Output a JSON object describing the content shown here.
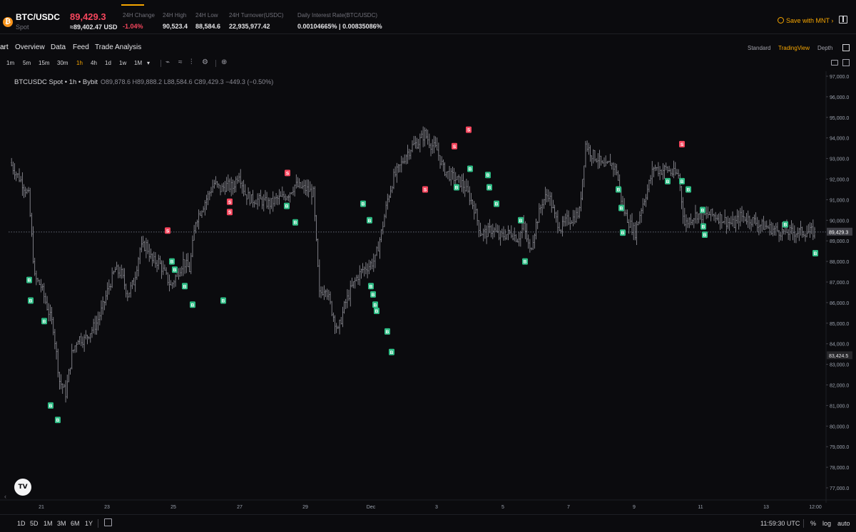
{
  "ticker": {
    "pair": "BTC/USDC",
    "type": "Spot",
    "coin_glyph": "₿",
    "last_price": "89,429.3",
    "fiat_price": "≈89,402.47 USD",
    "stats": [
      {
        "label": "24H Change",
        "value": "-1.04%",
        "negative": true
      },
      {
        "label": "24H High",
        "value": "90,523.4",
        "negative": false
      },
      {
        "label": "24H Low",
        "value": "88,584.6",
        "negative": false
      },
      {
        "label": "24H Turnover(USDC)",
        "value": "22,935,977.42",
        "negative": false
      },
      {
        "label": "Daily Interest Rate(BTC/USDC)",
        "value": "0.00104665% | 0.00835086%",
        "negative": false
      }
    ],
    "save_label": "Save with MNT ›"
  },
  "tabs": [
    "art",
    "Overview",
    "Data",
    "Feed",
    "Trade Analysis"
  ],
  "views": [
    "Standard",
    "TradingView",
    "Depth"
  ],
  "active_view": "TradingView",
  "intervals": [
    "1m",
    "5m",
    "15m",
    "30m",
    "1h",
    "4h",
    "1d",
    "1w",
    "1M",
    "▾"
  ],
  "active_interval": "1h",
  "tools": [
    "⌁",
    "≈",
    "⫶",
    "⚙",
    "⊕"
  ],
  "legend": {
    "symbol": "BTCUSDC Spot • 1h • Bybit",
    "ohlc": "O89,878.6 H89,888.2 L88,584.6 C89,429.3 −449.3 (−0.50%)"
  },
  "ranges": [
    "1D",
    "5D",
    "1M",
    "3M",
    "6M",
    "1Y"
  ],
  "clock": "11:59:30 UTC",
  "scale_options": [
    "%",
    "log",
    "auto"
  ],
  "tv_logo": "TV",
  "scroll_glyph": "‹",
  "colors": {
    "buy": "#2ebd85",
    "sell": "#f6465d",
    "accent": "#f7a600",
    "bar": "#9a9aa2"
  },
  "chart_data": {
    "type": "line",
    "style": "ohlc-bars",
    "symbol": "BTCUSDC",
    "interval": "1h",
    "ylim": [
      76500,
      97200
    ],
    "y_ticks": [
      97000,
      96000,
      95000,
      94000,
      93000,
      92000,
      91000,
      90000,
      89000,
      88000,
      87000,
      86000,
      85000,
      84000,
      83000,
      82000,
      81000,
      80000,
      79000,
      78000,
      77000
    ],
    "y_tick_labels": [
      "97,000.0",
      "96,000.0",
      "95,000.0",
      "94,000.0",
      "93,000.0",
      "92,000.0",
      "91,000.0",
      "90,000.0",
      "89,000.0",
      "88,000.0",
      "87,000.0",
      "86,000.0",
      "85,000.0",
      "84,000.0",
      "83,000.0",
      "82,000.0",
      "81,000.0",
      "80,000.0",
      "79,000.0",
      "78,000.0",
      "77,000.0"
    ],
    "x_ticks": [
      "21",
      "23",
      "25",
      "27",
      "29",
      "Dec",
      "3",
      "5",
      "7",
      "9",
      "11",
      "13",
      "12:00"
    ],
    "current_price": 89429.3,
    "current_price_label": "89,429.3",
    "low_marker": 83424.5,
    "low_marker_label": "83,424.5",
    "series": [
      {
        "values_x": [
          0,
          3,
          6,
          9,
          12,
          15,
          18,
          21,
          24,
          27,
          30,
          33,
          36,
          39,
          42,
          45,
          48,
          51,
          54,
          57,
          60,
          63,
          66,
          69,
          72,
          75,
          78,
          81,
          84,
          87,
          90,
          93,
          96,
          99,
          102,
          105,
          108,
          111,
          114,
          117,
          120,
          123,
          126,
          129,
          132,
          135,
          138,
          141,
          144,
          147,
          150,
          153,
          156,
          159,
          162,
          165,
          168,
          171,
          174,
          177,
          180,
          183,
          186,
          189,
          192,
          195,
          198,
          201,
          204,
          207,
          210,
          213,
          216,
          219,
          222,
          225,
          228,
          231,
          234,
          237,
          240,
          243,
          246,
          249,
          252,
          255,
          258,
          261,
          264,
          267,
          270,
          273,
          276,
          279,
          282,
          285,
          288,
          291,
          294,
          297,
          300,
          303,
          306,
          309,
          312,
          315,
          318,
          321,
          324,
          327,
          330,
          333,
          336,
          339,
          342,
          345,
          348,
          351,
          354,
          357,
          360,
          363,
          366,
          369,
          372,
          375,
          378,
          381,
          384,
          387,
          390
        ],
        "values": [
          92800,
          92300,
          91800,
          91200,
          87200,
          86800,
          85800,
          84800,
          82200,
          81600,
          83500,
          84300,
          84200,
          84600,
          85000,
          85800,
          86800,
          87600,
          87400,
          86400,
          87000,
          88600,
          88800,
          88000,
          88000,
          87400,
          86800,
          87400,
          88000,
          87600,
          90000,
          90600,
          91200,
          91800,
          91500,
          91700,
          91600,
          92300,
          91300,
          91000,
          91000,
          90900,
          90800,
          91000,
          91100,
          91300,
          91700,
          91600,
          91500,
          91300,
          86400,
          86800,
          85600,
          84600,
          85800,
          86600,
          87200,
          87600,
          87800,
          88100,
          89400,
          91000,
          92100,
          92600,
          93200,
          93600,
          93800,
          94200,
          93700,
          93400,
          92500,
          92200,
          92000,
          91800,
          91300,
          90600,
          89400,
          89400,
          89600,
          89200,
          89300,
          89400,
          89100,
          89700,
          88500,
          89800,
          90900,
          91300,
          90200,
          89600,
          90000,
          90100,
          90400,
          93700,
          93200,
          93000,
          92500,
          92800,
          92400,
          90600,
          89900,
          89400,
          90600,
          91500,
          92600,
          92400,
          92500,
          92300,
          92200,
          89800,
          90100,
          90300,
          90200,
          90300,
          90200,
          90100,
          89900,
          89800,
          90200,
          90100,
          90000,
          89800,
          89700,
          89600,
          89500,
          89430,
          89430,
          89430,
          89430,
          89430,
          89430
        ]
      }
    ],
    "signals": [
      {
        "label": "B",
        "kind": "buy",
        "x": 41,
        "y": 87100
      },
      {
        "label": "B",
        "kind": "buy",
        "x": 43,
        "y": 86100
      },
      {
        "label": "B",
        "kind": "buy",
        "x": 62,
        "y": 85100
      },
      {
        "label": "B",
        "kind": "buy",
        "x": 71,
        "y": 81000
      },
      {
        "label": "B",
        "kind": "buy",
        "x": 81,
        "y": 80300
      },
      {
        "label": "S",
        "kind": "sell",
        "x": 235,
        "y": 89500
      },
      {
        "label": "B",
        "kind": "buy",
        "x": 241,
        "y": 88000
      },
      {
        "label": "B",
        "kind": "buy",
        "x": 245,
        "y": 87600
      },
      {
        "label": "B",
        "kind": "buy",
        "x": 259,
        "y": 86800
      },
      {
        "label": "B",
        "kind": "buy",
        "x": 270,
        "y": 85900
      },
      {
        "label": "B",
        "kind": "buy",
        "x": 313,
        "y": 86100
      },
      {
        "label": "S",
        "kind": "sell",
        "x": 322,
        "y": 90900
      },
      {
        "label": "S",
        "kind": "sell",
        "x": 322,
        "y": 90400
      },
      {
        "label": "S",
        "kind": "sell",
        "x": 403,
        "y": 92300
      },
      {
        "label": "B",
        "kind": "buy",
        "x": 402,
        "y": 90700
      },
      {
        "label": "B",
        "kind": "buy",
        "x": 414,
        "y": 89900
      },
      {
        "label": "B",
        "kind": "buy",
        "x": 509,
        "y": 90800
      },
      {
        "label": "B",
        "kind": "buy",
        "x": 518,
        "y": 90000
      },
      {
        "label": "B",
        "kind": "buy",
        "x": 520,
        "y": 86800
      },
      {
        "label": "B",
        "kind": "buy",
        "x": 523,
        "y": 86400
      },
      {
        "label": "B",
        "kind": "buy",
        "x": 526,
        "y": 85900
      },
      {
        "label": "B",
        "kind": "buy",
        "x": 528,
        "y": 85600
      },
      {
        "label": "B",
        "kind": "buy",
        "x": 543,
        "y": 84600
      },
      {
        "label": "B",
        "kind": "buy",
        "x": 549,
        "y": 83600
      },
      {
        "label": "S",
        "kind": "sell",
        "x": 596,
        "y": 91500
      },
      {
        "label": "B",
        "kind": "buy",
        "x": 640,
        "y": 91600
      },
      {
        "label": "S",
        "kind": "sell",
        "x": 637,
        "y": 93600
      },
      {
        "label": "S",
        "kind": "sell",
        "x": 657,
        "y": 94400
      },
      {
        "label": "B",
        "kind": "buy",
        "x": 659,
        "y": 92500
      },
      {
        "label": "B",
        "kind": "buy",
        "x": 684,
        "y": 92200
      },
      {
        "label": "B",
        "kind": "buy",
        "x": 686,
        "y": 91600
      },
      {
        "label": "B",
        "kind": "buy",
        "x": 696,
        "y": 90800
      },
      {
        "label": "B",
        "kind": "buy",
        "x": 730,
        "y": 90000
      },
      {
        "label": "B",
        "kind": "buy",
        "x": 736,
        "y": 88000
      },
      {
        "label": "B",
        "kind": "buy",
        "x": 867,
        "y": 91500
      },
      {
        "label": "B",
        "kind": "buy",
        "x": 871,
        "y": 90600
      },
      {
        "label": "B",
        "kind": "buy",
        "x": 873,
        "y": 89400
      },
      {
        "label": "B",
        "kind": "buy",
        "x": 936,
        "y": 91900
      },
      {
        "label": "S",
        "kind": "sell",
        "x": 956,
        "y": 93700
      },
      {
        "label": "B",
        "kind": "buy",
        "x": 956,
        "y": 91900
      },
      {
        "label": "B",
        "kind": "buy",
        "x": 965,
        "y": 91500
      },
      {
        "label": "B",
        "kind": "buy",
        "x": 985,
        "y": 90500
      },
      {
        "label": "B",
        "kind": "buy",
        "x": 986,
        "y": 89700
      },
      {
        "label": "B",
        "kind": "buy",
        "x": 988,
        "y": 89300
      },
      {
        "label": "B",
        "kind": "buy",
        "x": 1101,
        "y": 89800
      },
      {
        "label": "B",
        "kind": "buy",
        "x": 1143,
        "y": 88400
      }
    ]
  }
}
